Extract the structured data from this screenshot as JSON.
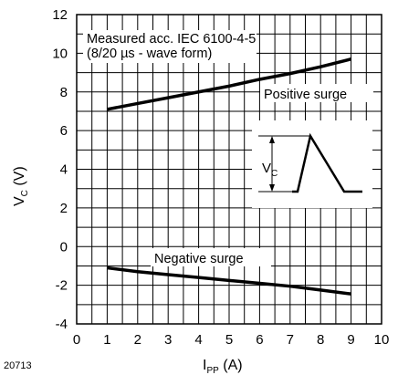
{
  "figure_id": "20713",
  "chart_data": {
    "type": "line",
    "xlabel": {
      "main": "I",
      "sub": "PP",
      "unit": " (A)"
    },
    "ylabel": {
      "main": "V",
      "sub": "C",
      "unit": " (V)"
    },
    "xlim": [
      0,
      10
    ],
    "ylim": [
      -4,
      12
    ],
    "x_ticks": [
      0,
      1,
      2,
      3,
      4,
      5,
      6,
      7,
      8,
      9,
      10
    ],
    "y_ticks": [
      -4,
      -2,
      0,
      2,
      4,
      6,
      8,
      10,
      12
    ],
    "grid": true,
    "annotation_lines": [
      "Measured acc. IEC 6100-4-5",
      "(8/20 µs - wave form)"
    ],
    "series": [
      {
        "name": "Positive surge",
        "x": [
          1,
          2,
          3,
          4,
          5,
          6,
          7,
          8,
          9
        ],
        "y": [
          7.1,
          7.4,
          7.7,
          8.0,
          8.3,
          8.65,
          8.95,
          9.3,
          9.7
        ]
      },
      {
        "name": "Negative surge",
        "x": [
          1,
          2,
          3,
          4,
          5,
          6,
          7,
          8,
          9
        ],
        "y": [
          -1.1,
          -1.3,
          -1.45,
          -1.6,
          -1.75,
          -1.9,
          -2.05,
          -2.25,
          -2.45
        ]
      }
    ],
    "inset": {
      "label_main": "V",
      "label_sub": "C"
    }
  }
}
